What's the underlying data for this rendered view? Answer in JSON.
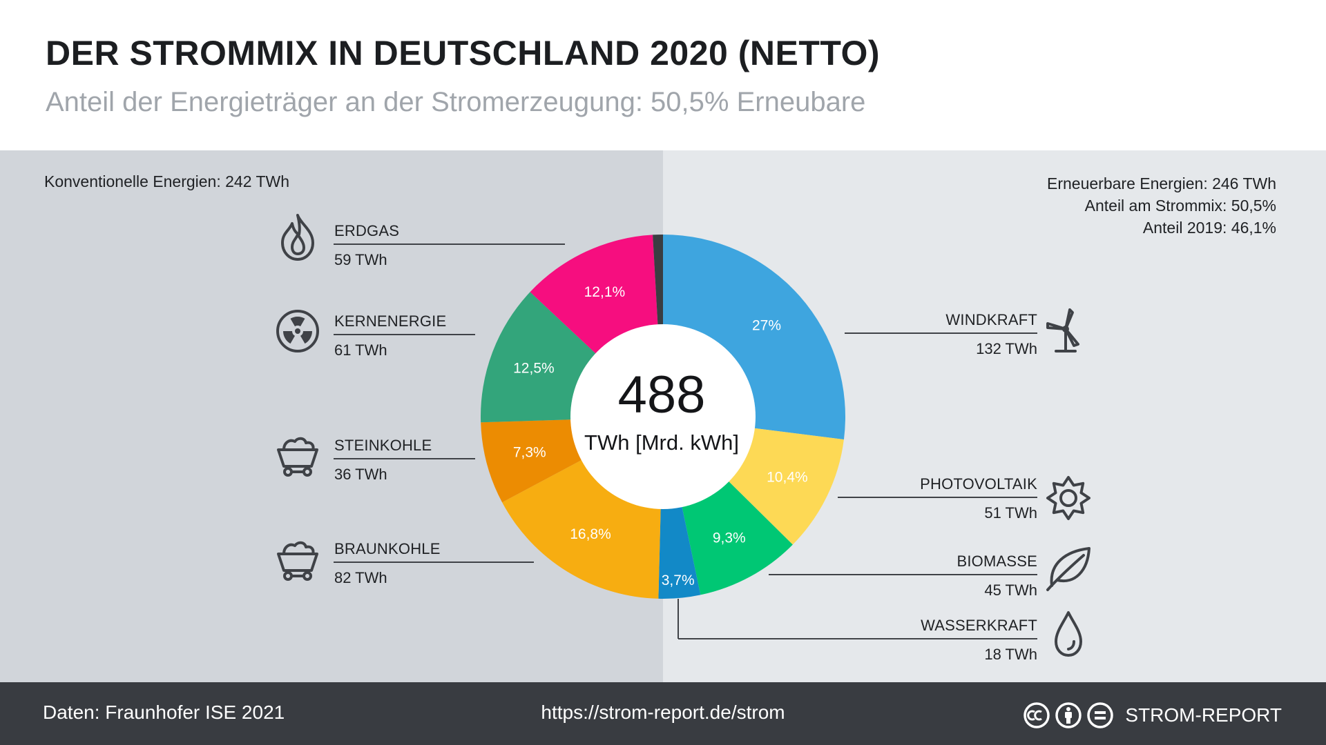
{
  "header": {
    "title": "DER STROMMIX IN DEUTSCHLAND 2020 (NETTO)",
    "subtitle": "Anteil der Energieträger an der Stromerzeugung: 50,5% Erneubare"
  },
  "summary": {
    "conventional": "Konventionelle Energien: 242 TWh",
    "renewable_total": "Erneuerbare Energien: 246 TWh",
    "renewable_share": "Anteil am Strommix: 50,5%",
    "renewable_share_2019": "Anteil 2019: 46,1%"
  },
  "footer": {
    "source": "Daten: Fraunhofer ISE 2021",
    "url": "https://strom-report.de/strom",
    "brand": "STROM-REPORT"
  },
  "colors": {
    "windkraft": "#3ea5df",
    "photovoltaik": "#fdd955",
    "biomasse": "#00c774",
    "wasserkraft": "#1289c7",
    "braunkohle": "#f7ad11",
    "steinkohle": "#ec8c02",
    "kernenergie": "#33a57b",
    "erdgas": "#f60e7f",
    "sonstige": "#3a3d42"
  },
  "chart_data": {
    "type": "pie",
    "variant": "donut",
    "center_value": "488",
    "center_unit": "TWh [Mrd. kWh]",
    "slices": [
      {
        "key": "windkraft",
        "name": "WINDKRAFT",
        "value": 27,
        "pct_label": "27%",
        "twh": "132 TWh",
        "group": "renewable",
        "icon": "wind-turbine-icon"
      },
      {
        "key": "photovoltaik",
        "name": "PHOTOVOLTAIK",
        "value": 10.4,
        "pct_label": "10,4%",
        "twh": "51 TWh",
        "group": "renewable",
        "icon": "sun-icon"
      },
      {
        "key": "biomasse",
        "name": "BIOMASSE",
        "value": 9.3,
        "pct_label": "9,3%",
        "twh": "45 TWh",
        "group": "renewable",
        "icon": "leaf-icon"
      },
      {
        "key": "wasserkraft",
        "name": "WASSERKRAFT",
        "value": 3.7,
        "pct_label": "3,7%",
        "twh": "18 TWh",
        "group": "renewable",
        "icon": "water-drop-icon"
      },
      {
        "key": "braunkohle",
        "name": "BRAUNKOHLE",
        "value": 16.8,
        "pct_label": "16,8%",
        "twh": "82 TWh",
        "group": "conventional",
        "icon": "coal-cart-icon"
      },
      {
        "key": "steinkohle",
        "name": "STEINKOHLE",
        "value": 7.3,
        "pct_label": "7,3%",
        "twh": "36 TWh",
        "group": "conventional",
        "icon": "coal-cart-icon"
      },
      {
        "key": "kernenergie",
        "name": "KERNENERGIE",
        "value": 12.5,
        "pct_label": "12,5%",
        "twh": "61 TWh",
        "group": "conventional",
        "icon": "radiation-icon"
      },
      {
        "key": "erdgas",
        "name": "ERDGAS",
        "value": 12.1,
        "pct_label": "12,1%",
        "twh": "59 TWh",
        "group": "conventional",
        "icon": "flame-icon"
      },
      {
        "key": "sonstige",
        "name": "",
        "value": 0.9,
        "pct_label": "",
        "twh": "",
        "group": "conventional",
        "icon": ""
      }
    ]
  }
}
